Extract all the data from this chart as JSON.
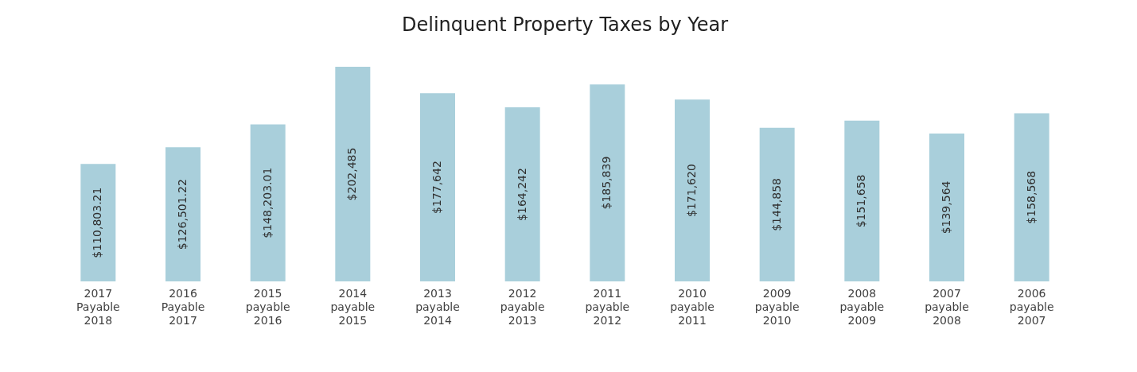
{
  "chart_data": {
    "type": "bar",
    "title": "Delinquent Property Taxes by Year",
    "categories": [
      "2017 Payable 2018",
      "2016 Payable 2017",
      "2015 payable 2016",
      "2014 payable 2015",
      "2013 payable 2014",
      "2012 payable 2013",
      "2011 payable 2012",
      "2010 payable 2011",
      "2009 payable 2010",
      "2008 payable 2009",
      "2007 payable 2008",
      "2006 payable 2007"
    ],
    "values": [
      110803.21,
      126501.22,
      148203.01,
      202485,
      177642,
      164242,
      185839,
      171620,
      144858,
      151658,
      139564,
      158568
    ],
    "value_labels": [
      "$110,803.21",
      "$126,501.22",
      "$148,203.01",
      "$202,485",
      "$177,642",
      "$164,242",
      "$185,839",
      "$171,620",
      "$144,858",
      "$151,658",
      "$139,564",
      "$158,568"
    ],
    "color": "#a9cfdb",
    "grid": false
  }
}
